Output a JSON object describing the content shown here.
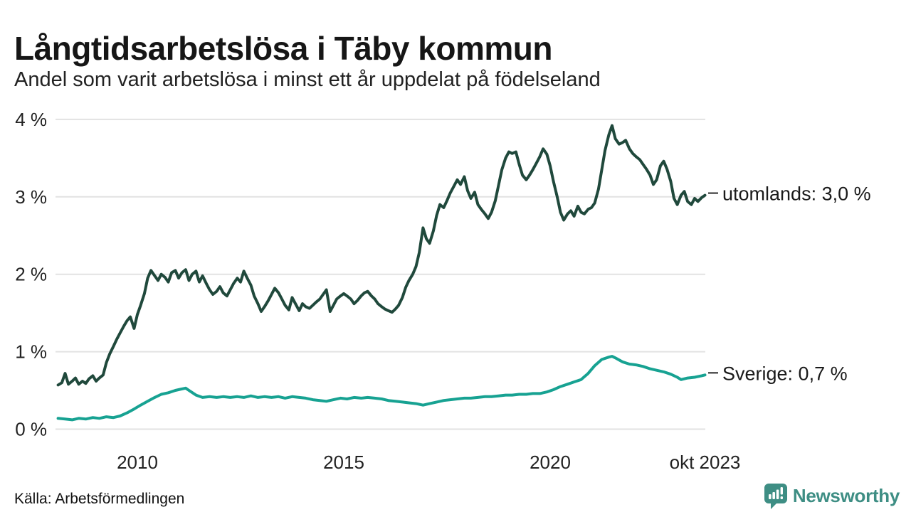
{
  "header": {
    "title": "Långtidsarbetslösa i Täby kommun",
    "subtitle": "Andel som varit arbetslösa i minst ett år uppdelat på födelseland"
  },
  "footer": {
    "source": "Källa: Arbetsförmedlingen",
    "logo_text": "Newsworthy"
  },
  "colors": {
    "brand_teal": "#3e8e84",
    "grid_line": "#e2e2e2",
    "axis_text": "#222222",
    "label_text": "#1a1a1a",
    "leader_dash": "#555555",
    "series_utomlands": "#20493c",
    "series_sverige": "#17a292"
  },
  "chart_data": {
    "type": "line",
    "title": "Långtidsarbetslösa i Täby kommun",
    "subtitle": "Andel som varit arbetslösa i minst ett år uppdelat på födelseland",
    "grid": "horizontal-only",
    "legend_position": "right-end-labels",
    "x_axis": {
      "range": [
        2008.08,
        2023.79
      ],
      "ticks": [
        {
          "t": 2010,
          "label": "2010"
        },
        {
          "t": 2015,
          "label": "2015"
        },
        {
          "t": 2020,
          "label": "2020"
        },
        {
          "t": 2023.75,
          "label": "okt 2023"
        }
      ]
    },
    "y_axis": {
      "range": [
        0,
        4
      ],
      "unit": "%",
      "ticks": [
        {
          "v": 0,
          "label": "0 %"
        },
        {
          "v": 1,
          "label": "1 %"
        },
        {
          "v": 2,
          "label": "2 %"
        },
        {
          "v": 3,
          "label": "3 %"
        },
        {
          "v": 4,
          "label": "4 %"
        }
      ]
    },
    "series": [
      {
        "name": "utomlands",
        "label": "utomlands: 3,0 %",
        "last_value_text": "3,0 %",
        "color": "#20493c",
        "points": [
          [
            2008.08,
            0.57
          ],
          [
            2008.17,
            0.6
          ],
          [
            2008.25,
            0.72
          ],
          [
            2008.33,
            0.58
          ],
          [
            2008.42,
            0.62
          ],
          [
            2008.5,
            0.66
          ],
          [
            2008.58,
            0.58
          ],
          [
            2008.67,
            0.62
          ],
          [
            2008.75,
            0.59
          ],
          [
            2008.83,
            0.65
          ],
          [
            2008.92,
            0.69
          ],
          [
            2009.0,
            0.62
          ],
          [
            2009.08,
            0.66
          ],
          [
            2009.17,
            0.7
          ],
          [
            2009.25,
            0.86
          ],
          [
            2009.33,
            0.97
          ],
          [
            2009.42,
            1.07
          ],
          [
            2009.5,
            1.16
          ],
          [
            2009.58,
            1.24
          ],
          [
            2009.67,
            1.33
          ],
          [
            2009.75,
            1.4
          ],
          [
            2009.83,
            1.45
          ],
          [
            2009.92,
            1.3
          ],
          [
            2010.0,
            1.48
          ],
          [
            2010.08,
            1.6
          ],
          [
            2010.17,
            1.75
          ],
          [
            2010.25,
            1.95
          ],
          [
            2010.33,
            2.05
          ],
          [
            2010.42,
            1.98
          ],
          [
            2010.5,
            1.92
          ],
          [
            2010.58,
            2.0
          ],
          [
            2010.67,
            1.96
          ],
          [
            2010.75,
            1.9
          ],
          [
            2010.83,
            2.02
          ],
          [
            2010.92,
            2.05
          ],
          [
            2011.0,
            1.95
          ],
          [
            2011.08,
            2.02
          ],
          [
            2011.17,
            2.06
          ],
          [
            2011.25,
            1.92
          ],
          [
            2011.33,
            2.0
          ],
          [
            2011.42,
            2.04
          ],
          [
            2011.5,
            1.9
          ],
          [
            2011.58,
            1.98
          ],
          [
            2011.67,
            1.88
          ],
          [
            2011.75,
            1.8
          ],
          [
            2011.83,
            1.74
          ],
          [
            2011.92,
            1.78
          ],
          [
            2012.0,
            1.84
          ],
          [
            2012.08,
            1.76
          ],
          [
            2012.17,
            1.72
          ],
          [
            2012.25,
            1.8
          ],
          [
            2012.33,
            1.88
          ],
          [
            2012.42,
            1.95
          ],
          [
            2012.5,
            1.9
          ],
          [
            2012.58,
            2.04
          ],
          [
            2012.67,
            1.94
          ],
          [
            2012.75,
            1.86
          ],
          [
            2012.83,
            1.72
          ],
          [
            2012.92,
            1.62
          ],
          [
            2013.0,
            1.52
          ],
          [
            2013.08,
            1.58
          ],
          [
            2013.17,
            1.66
          ],
          [
            2013.25,
            1.74
          ],
          [
            2013.33,
            1.82
          ],
          [
            2013.42,
            1.76
          ],
          [
            2013.5,
            1.68
          ],
          [
            2013.58,
            1.6
          ],
          [
            2013.67,
            1.54
          ],
          [
            2013.75,
            1.7
          ],
          [
            2013.83,
            1.62
          ],
          [
            2013.92,
            1.53
          ],
          [
            2014.0,
            1.62
          ],
          [
            2014.08,
            1.58
          ],
          [
            2014.17,
            1.56
          ],
          [
            2014.25,
            1.6
          ],
          [
            2014.33,
            1.64
          ],
          [
            2014.42,
            1.68
          ],
          [
            2014.5,
            1.74
          ],
          [
            2014.58,
            1.8
          ],
          [
            2014.67,
            1.52
          ],
          [
            2014.75,
            1.6
          ],
          [
            2014.83,
            1.68
          ],
          [
            2014.92,
            1.72
          ],
          [
            2015.0,
            1.75
          ],
          [
            2015.08,
            1.72
          ],
          [
            2015.17,
            1.68
          ],
          [
            2015.25,
            1.62
          ],
          [
            2015.33,
            1.66
          ],
          [
            2015.42,
            1.72
          ],
          [
            2015.5,
            1.76
          ],
          [
            2015.58,
            1.78
          ],
          [
            2015.67,
            1.72
          ],
          [
            2015.75,
            1.68
          ],
          [
            2015.83,
            1.62
          ],
          [
            2015.92,
            1.58
          ],
          [
            2016.0,
            1.55
          ],
          [
            2016.08,
            1.53
          ],
          [
            2016.17,
            1.51
          ],
          [
            2016.25,
            1.55
          ],
          [
            2016.33,
            1.6
          ],
          [
            2016.42,
            1.7
          ],
          [
            2016.5,
            1.83
          ],
          [
            2016.58,
            1.92
          ],
          [
            2016.67,
            2.0
          ],
          [
            2016.75,
            2.1
          ],
          [
            2016.83,
            2.28
          ],
          [
            2016.92,
            2.6
          ],
          [
            2017.0,
            2.46
          ],
          [
            2017.08,
            2.4
          ],
          [
            2017.17,
            2.56
          ],
          [
            2017.25,
            2.76
          ],
          [
            2017.33,
            2.9
          ],
          [
            2017.42,
            2.86
          ],
          [
            2017.5,
            2.95
          ],
          [
            2017.58,
            3.05
          ],
          [
            2017.67,
            3.14
          ],
          [
            2017.75,
            3.22
          ],
          [
            2017.83,
            3.16
          ],
          [
            2017.92,
            3.26
          ],
          [
            2018.0,
            3.08
          ],
          [
            2018.08,
            2.98
          ],
          [
            2018.17,
            3.06
          ],
          [
            2018.25,
            2.9
          ],
          [
            2018.33,
            2.84
          ],
          [
            2018.42,
            2.78
          ],
          [
            2018.5,
            2.72
          ],
          [
            2018.58,
            2.8
          ],
          [
            2018.67,
            2.95
          ],
          [
            2018.75,
            3.15
          ],
          [
            2018.83,
            3.35
          ],
          [
            2018.92,
            3.5
          ],
          [
            2019.0,
            3.58
          ],
          [
            2019.08,
            3.56
          ],
          [
            2019.17,
            3.58
          ],
          [
            2019.25,
            3.42
          ],
          [
            2019.33,
            3.28
          ],
          [
            2019.42,
            3.22
          ],
          [
            2019.5,
            3.28
          ],
          [
            2019.58,
            3.35
          ],
          [
            2019.67,
            3.44
          ],
          [
            2019.75,
            3.52
          ],
          [
            2019.83,
            3.62
          ],
          [
            2019.92,
            3.55
          ],
          [
            2020.0,
            3.4
          ],
          [
            2020.08,
            3.2
          ],
          [
            2020.17,
            3.0
          ],
          [
            2020.25,
            2.8
          ],
          [
            2020.33,
            2.7
          ],
          [
            2020.42,
            2.78
          ],
          [
            2020.5,
            2.82
          ],
          [
            2020.58,
            2.75
          ],
          [
            2020.67,
            2.88
          ],
          [
            2020.75,
            2.8
          ],
          [
            2020.83,
            2.78
          ],
          [
            2020.92,
            2.84
          ],
          [
            2021.0,
            2.86
          ],
          [
            2021.08,
            2.92
          ],
          [
            2021.17,
            3.1
          ],
          [
            2021.25,
            3.35
          ],
          [
            2021.33,
            3.6
          ],
          [
            2021.42,
            3.8
          ],
          [
            2021.5,
            3.92
          ],
          [
            2021.58,
            3.75
          ],
          [
            2021.67,
            3.68
          ],
          [
            2021.75,
            3.7
          ],
          [
            2021.83,
            3.73
          ],
          [
            2021.92,
            3.62
          ],
          [
            2022.0,
            3.56
          ],
          [
            2022.08,
            3.52
          ],
          [
            2022.17,
            3.48
          ],
          [
            2022.25,
            3.42
          ],
          [
            2022.33,
            3.36
          ],
          [
            2022.42,
            3.28
          ],
          [
            2022.5,
            3.16
          ],
          [
            2022.58,
            3.22
          ],
          [
            2022.67,
            3.4
          ],
          [
            2022.75,
            3.46
          ],
          [
            2022.83,
            3.36
          ],
          [
            2022.92,
            3.2
          ],
          [
            2023.0,
            2.98
          ],
          [
            2023.08,
            2.9
          ],
          [
            2023.17,
            3.02
          ],
          [
            2023.25,
            3.07
          ],
          [
            2023.33,
            2.94
          ],
          [
            2023.42,
            2.9
          ],
          [
            2023.5,
            2.98
          ],
          [
            2023.58,
            2.94
          ],
          [
            2023.67,
            2.99
          ],
          [
            2023.75,
            3.02
          ]
        ]
      },
      {
        "name": "Sverige",
        "label": "Sverige: 0,7 %",
        "last_value_text": "0,7 %",
        "color": "#17a292",
        "points": [
          [
            2008.08,
            0.14
          ],
          [
            2008.25,
            0.13
          ],
          [
            2008.42,
            0.12
          ],
          [
            2008.58,
            0.14
          ],
          [
            2008.75,
            0.13
          ],
          [
            2008.92,
            0.15
          ],
          [
            2009.08,
            0.14
          ],
          [
            2009.25,
            0.16
          ],
          [
            2009.42,
            0.15
          ],
          [
            2009.58,
            0.17
          ],
          [
            2009.75,
            0.21
          ],
          [
            2009.92,
            0.26
          ],
          [
            2010.08,
            0.31
          ],
          [
            2010.25,
            0.36
          ],
          [
            2010.42,
            0.41
          ],
          [
            2010.58,
            0.45
          ],
          [
            2010.75,
            0.47
          ],
          [
            2010.92,
            0.5
          ],
          [
            2011.08,
            0.52
          ],
          [
            2011.17,
            0.53
          ],
          [
            2011.25,
            0.5
          ],
          [
            2011.42,
            0.44
          ],
          [
            2011.58,
            0.41
          ],
          [
            2011.75,
            0.42
          ],
          [
            2011.92,
            0.41
          ],
          [
            2012.08,
            0.42
          ],
          [
            2012.25,
            0.41
          ],
          [
            2012.42,
            0.42
          ],
          [
            2012.58,
            0.41
          ],
          [
            2012.75,
            0.43
          ],
          [
            2012.92,
            0.41
          ],
          [
            2013.08,
            0.42
          ],
          [
            2013.25,
            0.41
          ],
          [
            2013.42,
            0.42
          ],
          [
            2013.58,
            0.4
          ],
          [
            2013.75,
            0.42
          ],
          [
            2013.92,
            0.41
          ],
          [
            2014.08,
            0.4
          ],
          [
            2014.25,
            0.38
          ],
          [
            2014.42,
            0.37
          ],
          [
            2014.58,
            0.36
          ],
          [
            2014.75,
            0.38
          ],
          [
            2014.92,
            0.4
          ],
          [
            2015.08,
            0.39
          ],
          [
            2015.25,
            0.41
          ],
          [
            2015.42,
            0.4
          ],
          [
            2015.58,
            0.41
          ],
          [
            2015.75,
            0.4
          ],
          [
            2015.92,
            0.39
          ],
          [
            2016.08,
            0.37
          ],
          [
            2016.25,
            0.36
          ],
          [
            2016.42,
            0.35
          ],
          [
            2016.58,
            0.34
          ],
          [
            2016.75,
            0.33
          ],
          [
            2016.92,
            0.31
          ],
          [
            2017.08,
            0.33
          ],
          [
            2017.25,
            0.35
          ],
          [
            2017.42,
            0.37
          ],
          [
            2017.58,
            0.38
          ],
          [
            2017.75,
            0.39
          ],
          [
            2017.92,
            0.4
          ],
          [
            2018.08,
            0.4
          ],
          [
            2018.25,
            0.41
          ],
          [
            2018.42,
            0.42
          ],
          [
            2018.58,
            0.42
          ],
          [
            2018.75,
            0.43
          ],
          [
            2018.92,
            0.44
          ],
          [
            2019.08,
            0.44
          ],
          [
            2019.25,
            0.45
          ],
          [
            2019.42,
            0.45
          ],
          [
            2019.58,
            0.46
          ],
          [
            2019.75,
            0.46
          ],
          [
            2019.92,
            0.48
          ],
          [
            2020.08,
            0.51
          ],
          [
            2020.25,
            0.55
          ],
          [
            2020.42,
            0.58
          ],
          [
            2020.58,
            0.61
          ],
          [
            2020.75,
            0.64
          ],
          [
            2020.92,
            0.72
          ],
          [
            2021.08,
            0.82
          ],
          [
            2021.25,
            0.9
          ],
          [
            2021.42,
            0.93
          ],
          [
            2021.5,
            0.94
          ],
          [
            2021.58,
            0.92
          ],
          [
            2021.75,
            0.87
          ],
          [
            2021.92,
            0.84
          ],
          [
            2022.08,
            0.83
          ],
          [
            2022.25,
            0.81
          ],
          [
            2022.42,
            0.78
          ],
          [
            2022.58,
            0.76
          ],
          [
            2022.75,
            0.74
          ],
          [
            2022.92,
            0.71
          ],
          [
            2023.08,
            0.67
          ],
          [
            2023.17,
            0.64
          ],
          [
            2023.33,
            0.66
          ],
          [
            2023.5,
            0.67
          ],
          [
            2023.67,
            0.69
          ],
          [
            2023.75,
            0.7
          ]
        ]
      }
    ]
  }
}
